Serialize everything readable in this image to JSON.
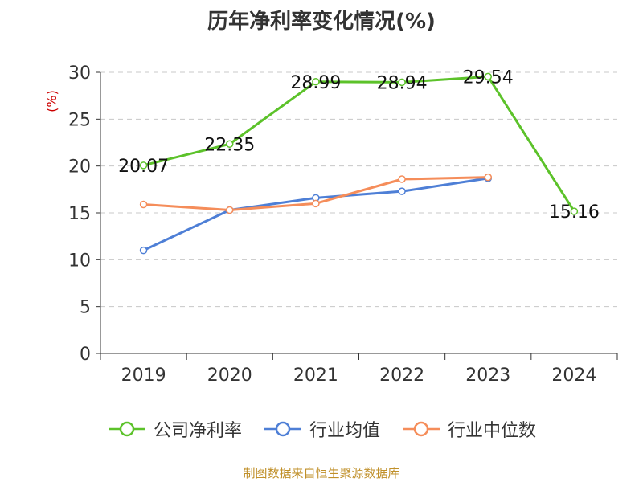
{
  "chart_data": {
    "type": "line",
    "title": "历年净利率变化情况(%)",
    "ylabel": "(%)",
    "xlabel": "",
    "categories": [
      "2019",
      "2020",
      "2021",
      "2022",
      "2023",
      "2024"
    ],
    "ylim": [
      0,
      30
    ],
    "yticks": [
      0,
      5,
      10,
      15,
      20,
      25,
      30
    ],
    "grid": true,
    "legend_position": "bottom",
    "series": [
      {
        "name": "公司净利率",
        "color": "#5cc22a",
        "values": [
          20.07,
          22.35,
          28.99,
          28.94,
          29.54,
          15.16
        ],
        "data_labels": [
          "20.07",
          "22.35",
          "28.99",
          "28.94",
          "29.54",
          "15.16"
        ]
      },
      {
        "name": "行业均值",
        "color": "#4e7fd6",
        "values": [
          11.0,
          15.3,
          16.6,
          17.3,
          18.7,
          null
        ]
      },
      {
        "name": "行业中位数",
        "color": "#f58d5a",
        "values": [
          15.9,
          15.3,
          16.0,
          18.6,
          18.8,
          null
        ]
      }
    ]
  },
  "footer": {
    "source": "制图数据来自恒生聚源数据库"
  }
}
